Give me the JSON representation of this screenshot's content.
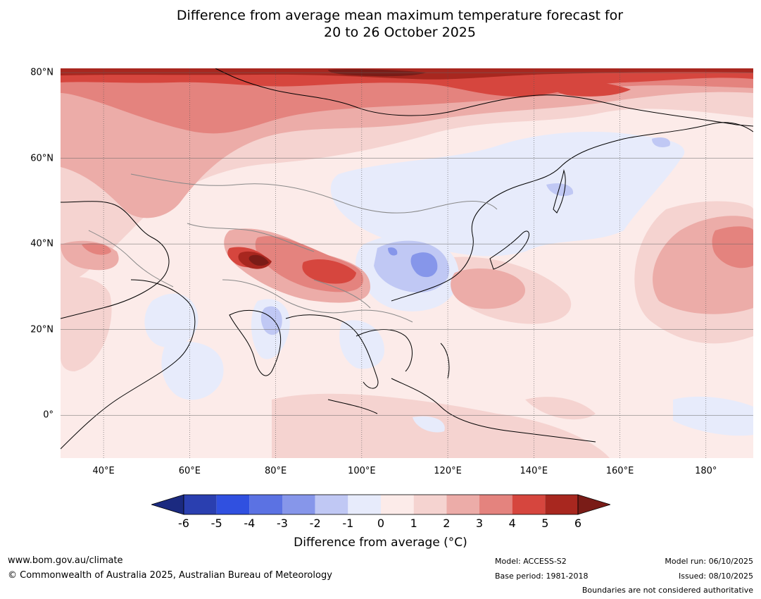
{
  "title": "Difference from average mean maximum temperature forecast for\n20 to 26 October 2025",
  "axes": {
    "lat_labels": [
      {
        "text": "80°N",
        "lat": 80
      },
      {
        "text": "60°N",
        "lat": 60
      },
      {
        "text": "40°N",
        "lat": 40
      },
      {
        "text": "20°N",
        "lat": 20
      },
      {
        "text": "0°",
        "lat": 0
      }
    ],
    "lon_labels": [
      {
        "text": "40°E",
        "lon": 40
      },
      {
        "text": "60°E",
        "lon": 60
      },
      {
        "text": "80°E",
        "lon": 80
      },
      {
        "text": "100°E",
        "lon": 100
      },
      {
        "text": "120°E",
        "lon": 120
      },
      {
        "text": "140°E",
        "lon": 140
      },
      {
        "text": "160°E",
        "lon": 160
      },
      {
        "text": "180°",
        "lon": 180
      }
    ],
    "lon_range": [
      30,
      191
    ],
    "lat_range": [
      -10,
      81
    ]
  },
  "colorbar": {
    "ticks": [
      "-6",
      "-5",
      "-4",
      "-3",
      "-2",
      "-1",
      "0",
      "1",
      "2",
      "3",
      "4",
      "5",
      "6"
    ],
    "colors": [
      "#1b2a80",
      "#2a3fb0",
      "#3050e0",
      "#5b72e3",
      "#8696ea",
      "#c0c8f4",
      "#e7ebfb",
      "#fcebe9",
      "#f5d3d0",
      "#ecaca8",
      "#e4837e",
      "#d6463e",
      "#a8271f",
      "#7a1c17"
    ],
    "label": "Difference from average (°C)"
  },
  "footer": {
    "website": "www.bom.gov.au/climate",
    "copyright": "© Commonwealth of Australia 2025, Australian Bureau of Meteorology",
    "model": "Model: ACCESS-S2",
    "base_period": "Base period: 1981-2018",
    "model_run": "Model run: 06/10/2025",
    "issued": "Issued: 08/10/2025",
    "disclaimer": "Boundaries are not considered authoritative"
  }
}
